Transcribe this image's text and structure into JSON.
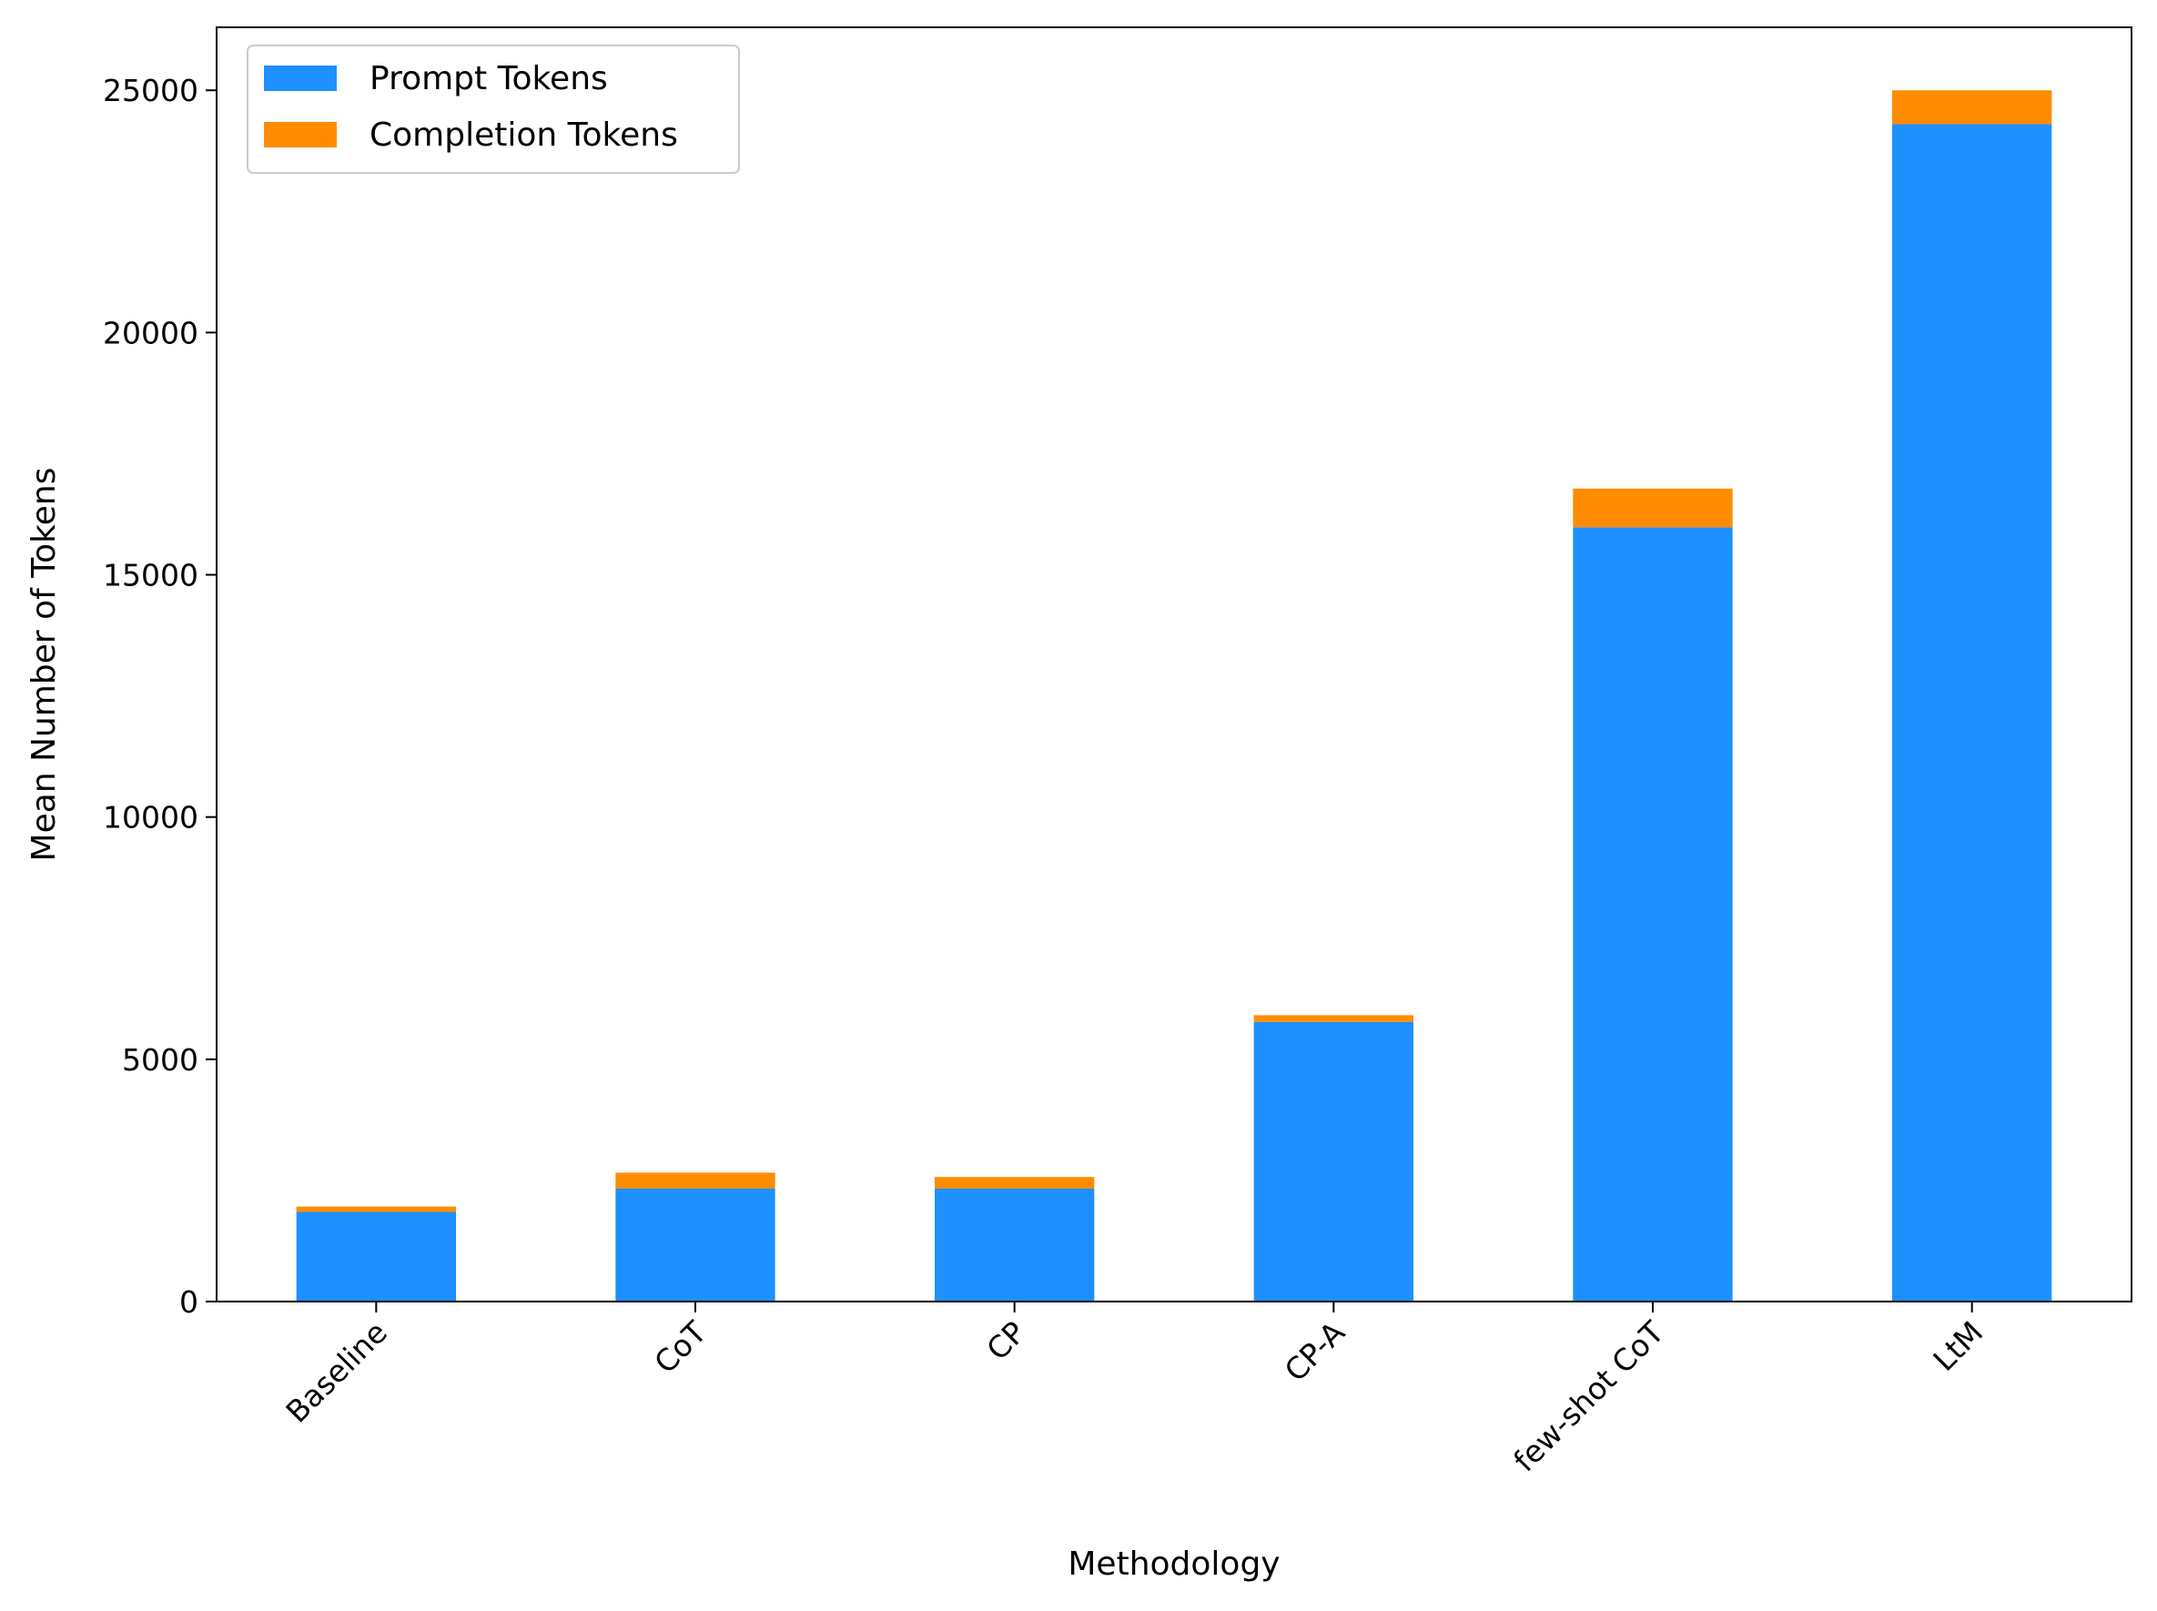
{
  "chart_data": {
    "type": "bar",
    "stacked": true,
    "title": "",
    "xlabel": "Methodology",
    "ylabel": "Mean Number of Tokens",
    "categories": [
      "Baseline",
      "CoT",
      "CP",
      "CP-A",
      "few-shot CoT",
      "LtM"
    ],
    "series": [
      {
        "name": "Prompt Tokens",
        "color": "#1e90ff",
        "values": [
          1850,
          2330,
          2330,
          5770,
          15980,
          24300
        ]
      },
      {
        "name": "Completion Tokens",
        "color": "#ff8c00",
        "values": [
          110,
          330,
          240,
          140,
          800,
          700
        ]
      }
    ],
    "ylim": [
      0,
      26300
    ],
    "yticks": [
      0,
      5000,
      10000,
      15000,
      20000,
      25000
    ],
    "grid": false,
    "legend_position": "top-left"
  }
}
